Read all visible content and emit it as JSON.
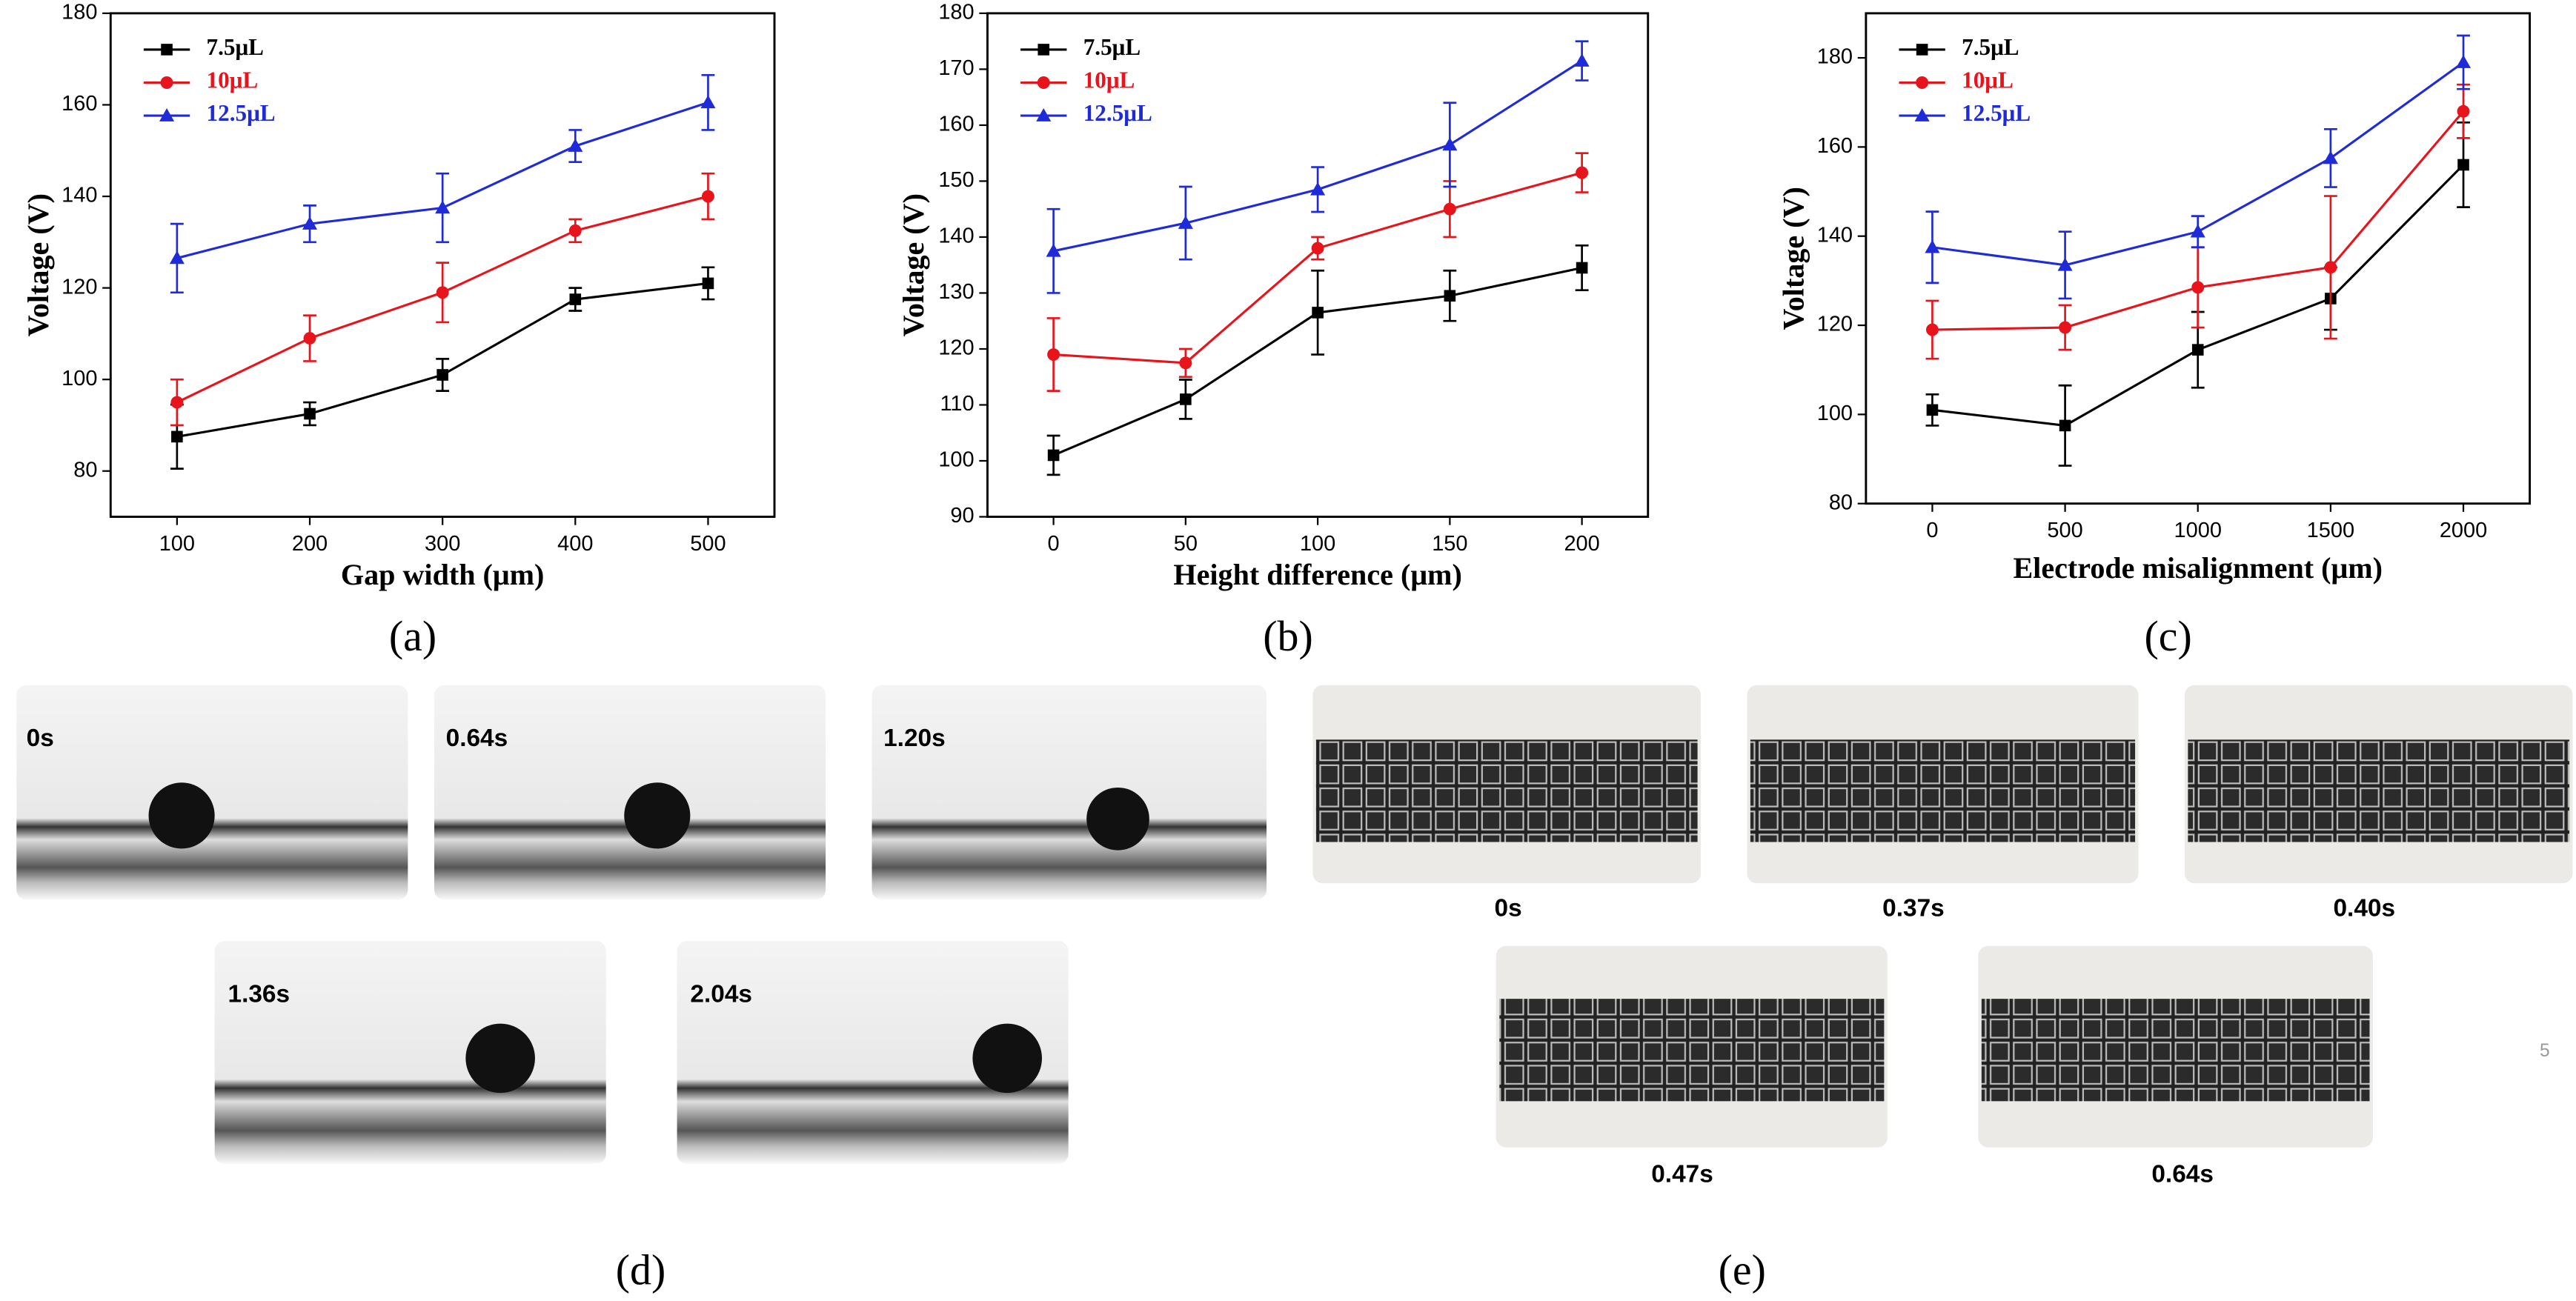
{
  "chart_data": [
    {
      "type": "line",
      "label": "(a)",
      "x_label": "Gap width (μm)",
      "y_label": "Voltage (V)",
      "x": [
        100,
        200,
        300,
        400,
        500
      ],
      "xlim": [
        50,
        550
      ],
      "xticks": [
        100,
        200,
        300,
        400,
        500
      ],
      "ylim": [
        70,
        180
      ],
      "yticks": [
        80,
        100,
        120,
        140,
        160,
        180
      ],
      "series": [
        {
          "name": "7.5μL",
          "color": "#000000",
          "marker": "square",
          "values": [
            87.5,
            92.5,
            101,
            117.5,
            121
          ],
          "errors": [
            7,
            2.5,
            3.5,
            2.5,
            3.5
          ]
        },
        {
          "name": "10μL",
          "color": "#e8141b",
          "marker": "circle",
          "values": [
            95,
            109,
            119,
            132.5,
            140
          ],
          "errors": [
            5,
            5,
            6.5,
            2.5,
            5
          ]
        },
        {
          "name": "12.5μL",
          "color": "#1f2bd8",
          "marker": "triangle",
          "values": [
            126.5,
            134,
            137.5,
            151,
            160.5
          ],
          "errors": [
            7.5,
            4,
            7.5,
            3.5,
            6
          ]
        }
      ]
    },
    {
      "type": "line",
      "label": "(b)",
      "x_label": "Height difference (μm)",
      "y_label": "Voltage (V)",
      "x": [
        0,
        50,
        100,
        150,
        200
      ],
      "xlim": [
        -25,
        225
      ],
      "xticks": [
        0,
        50,
        100,
        150,
        200
      ],
      "ylim": [
        90,
        180
      ],
      "yticks": [
        90,
        100,
        110,
        120,
        130,
        140,
        150,
        160,
        170,
        180
      ],
      "series": [
        {
          "name": "7.5μL",
          "color": "#000000",
          "marker": "square",
          "values": [
            101,
            111,
            126.5,
            129.5,
            134.5
          ],
          "errors": [
            3.5,
            3.5,
            7.5,
            4.5,
            4
          ]
        },
        {
          "name": "10μL",
          "color": "#e8141b",
          "marker": "circle",
          "values": [
            119,
            117.5,
            138,
            145,
            151.5
          ],
          "errors": [
            6.5,
            2.5,
            2,
            5,
            3.5
          ]
        },
        {
          "name": "12.5μL",
          "color": "#1f2bd8",
          "marker": "triangle",
          "values": [
            137.5,
            142.5,
            148.5,
            156.5,
            171.5
          ],
          "errors": [
            7.5,
            6.5,
            4,
            7.5,
            3.5
          ]
        }
      ]
    },
    {
      "type": "line",
      "label": "(c)",
      "x_label": "Electrode misalignment (μm)",
      "y_label": "Voltage (V)",
      "x": [
        0,
        500,
        1000,
        1500,
        2000
      ],
      "xlim": [
        -250,
        2250
      ],
      "xticks": [
        0,
        500,
        1000,
        1500,
        2000
      ],
      "ylim": [
        80,
        190
      ],
      "yticks": [
        80,
        100,
        120,
        140,
        160,
        180
      ],
      "series": [
        {
          "name": "7.5μL",
          "color": "#000000",
          "marker": "square",
          "values": [
            101,
            97.5,
            114.5,
            126,
            156
          ],
          "errors": [
            3.5,
            9,
            8.5,
            7,
            9.5
          ]
        },
        {
          "name": "10μL",
          "color": "#e8141b",
          "marker": "circle",
          "values": [
            119,
            119.5,
            128.5,
            133,
            168
          ],
          "errors": [
            6.5,
            5,
            9,
            16,
            6
          ]
        },
        {
          "name": "12.5μL",
          "color": "#1f2bd8",
          "marker": "triangle",
          "values": [
            137.5,
            133.5,
            141,
            157.5,
            179
          ],
          "errors": [
            8,
            7.5,
            3.5,
            6.5,
            6
          ]
        }
      ]
    }
  ],
  "panels": [
    {
      "label": "(d)",
      "frames": [
        "0s",
        "0.64s",
        "1.20s",
        "1.36s",
        "2.04s"
      ]
    },
    {
      "label": "(e)",
      "frames": [
        "0s",
        "0.37s",
        "0.40s",
        "0.47s",
        "0.64s"
      ]
    }
  ],
  "page_number": "5"
}
